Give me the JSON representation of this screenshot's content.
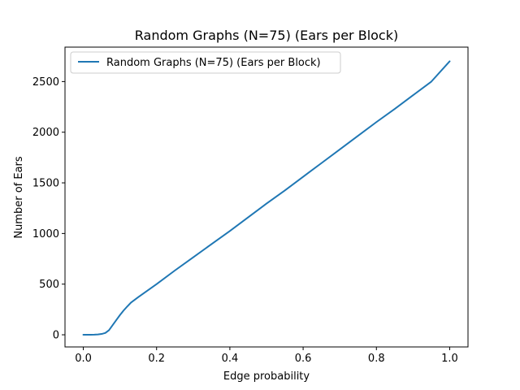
{
  "chart_data": {
    "type": "line",
    "title": "Random Graphs (N=75) (Ears per Block)",
    "xlabel": "Edge probability",
    "ylabel": "Number of Ears",
    "xlim": [
      -0.05,
      1.05
    ],
    "ylim": [
      -120,
      2840
    ],
    "x_ticks": [
      0.0,
      0.2,
      0.4,
      0.6,
      0.8,
      1.0
    ],
    "x_tick_labels": [
      "0.0",
      "0.2",
      "0.4",
      "0.6",
      "0.8",
      "1.0"
    ],
    "y_ticks": [
      0,
      500,
      1000,
      1500,
      2000,
      2500
    ],
    "y_tick_labels": [
      "0",
      "500",
      "1000",
      "1500",
      "2000",
      "2500"
    ],
    "grid": false,
    "legend_position": "top-left",
    "series": [
      {
        "name": "Random Graphs (N=75) (Ears per Block)",
        "color": "#1f77b4",
        "x": [
          0.0,
          0.01,
          0.02,
          0.03,
          0.04,
          0.05,
          0.06,
          0.07,
          0.08,
          0.09,
          0.1,
          0.11,
          0.12,
          0.13,
          0.14,
          0.15,
          0.2,
          0.25,
          0.3,
          0.35,
          0.4,
          0.45,
          0.5,
          0.55,
          0.6,
          0.65,
          0.7,
          0.75,
          0.8,
          0.85,
          0.9,
          0.95,
          1.0
        ],
        "values": [
          0,
          0,
          0,
          1,
          3,
          8,
          18,
          45,
          95,
          145,
          195,
          240,
          280,
          318,
          345,
          372,
          500,
          635,
          765,
          895,
          1025,
          1160,
          1295,
          1425,
          1560,
          1695,
          1830,
          1965,
          2100,
          2230,
          2365,
          2500,
          2700
        ]
      }
    ]
  }
}
